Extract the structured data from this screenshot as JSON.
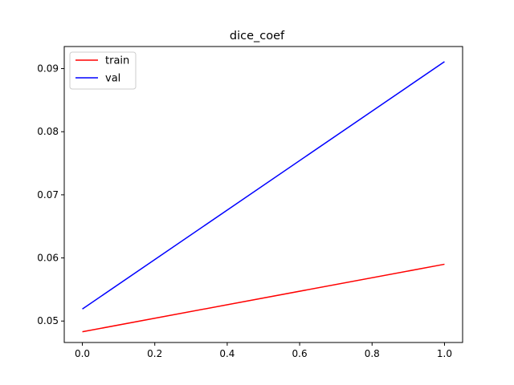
{
  "chart_data": {
    "type": "line",
    "title": "dice_coef",
    "xlabel": "",
    "ylabel": "",
    "xlim": [
      -0.05,
      1.05
    ],
    "ylim": [
      0.0466,
      0.0935
    ],
    "x_ticks": [
      0.0,
      0.2,
      0.4,
      0.6,
      0.8,
      1.0
    ],
    "x_tick_labels": [
      "0.0",
      "0.2",
      "0.4",
      "0.6",
      "0.8",
      "1.0"
    ],
    "y_ticks": [
      0.05,
      0.06,
      0.07,
      0.08,
      0.09
    ],
    "y_tick_labels": [
      "0.05",
      "0.06",
      "0.07",
      "0.08",
      "0.09"
    ],
    "grid": false,
    "legend_position": "top-left",
    "series": [
      {
        "name": "train",
        "color": "#ff0000",
        "x": [
          0,
          1
        ],
        "values": [
          0.0483,
          0.059
        ]
      },
      {
        "name": "val",
        "color": "#0000ff",
        "x": [
          0,
          1
        ],
        "values": [
          0.0519,
          0.0911
        ]
      }
    ]
  }
}
